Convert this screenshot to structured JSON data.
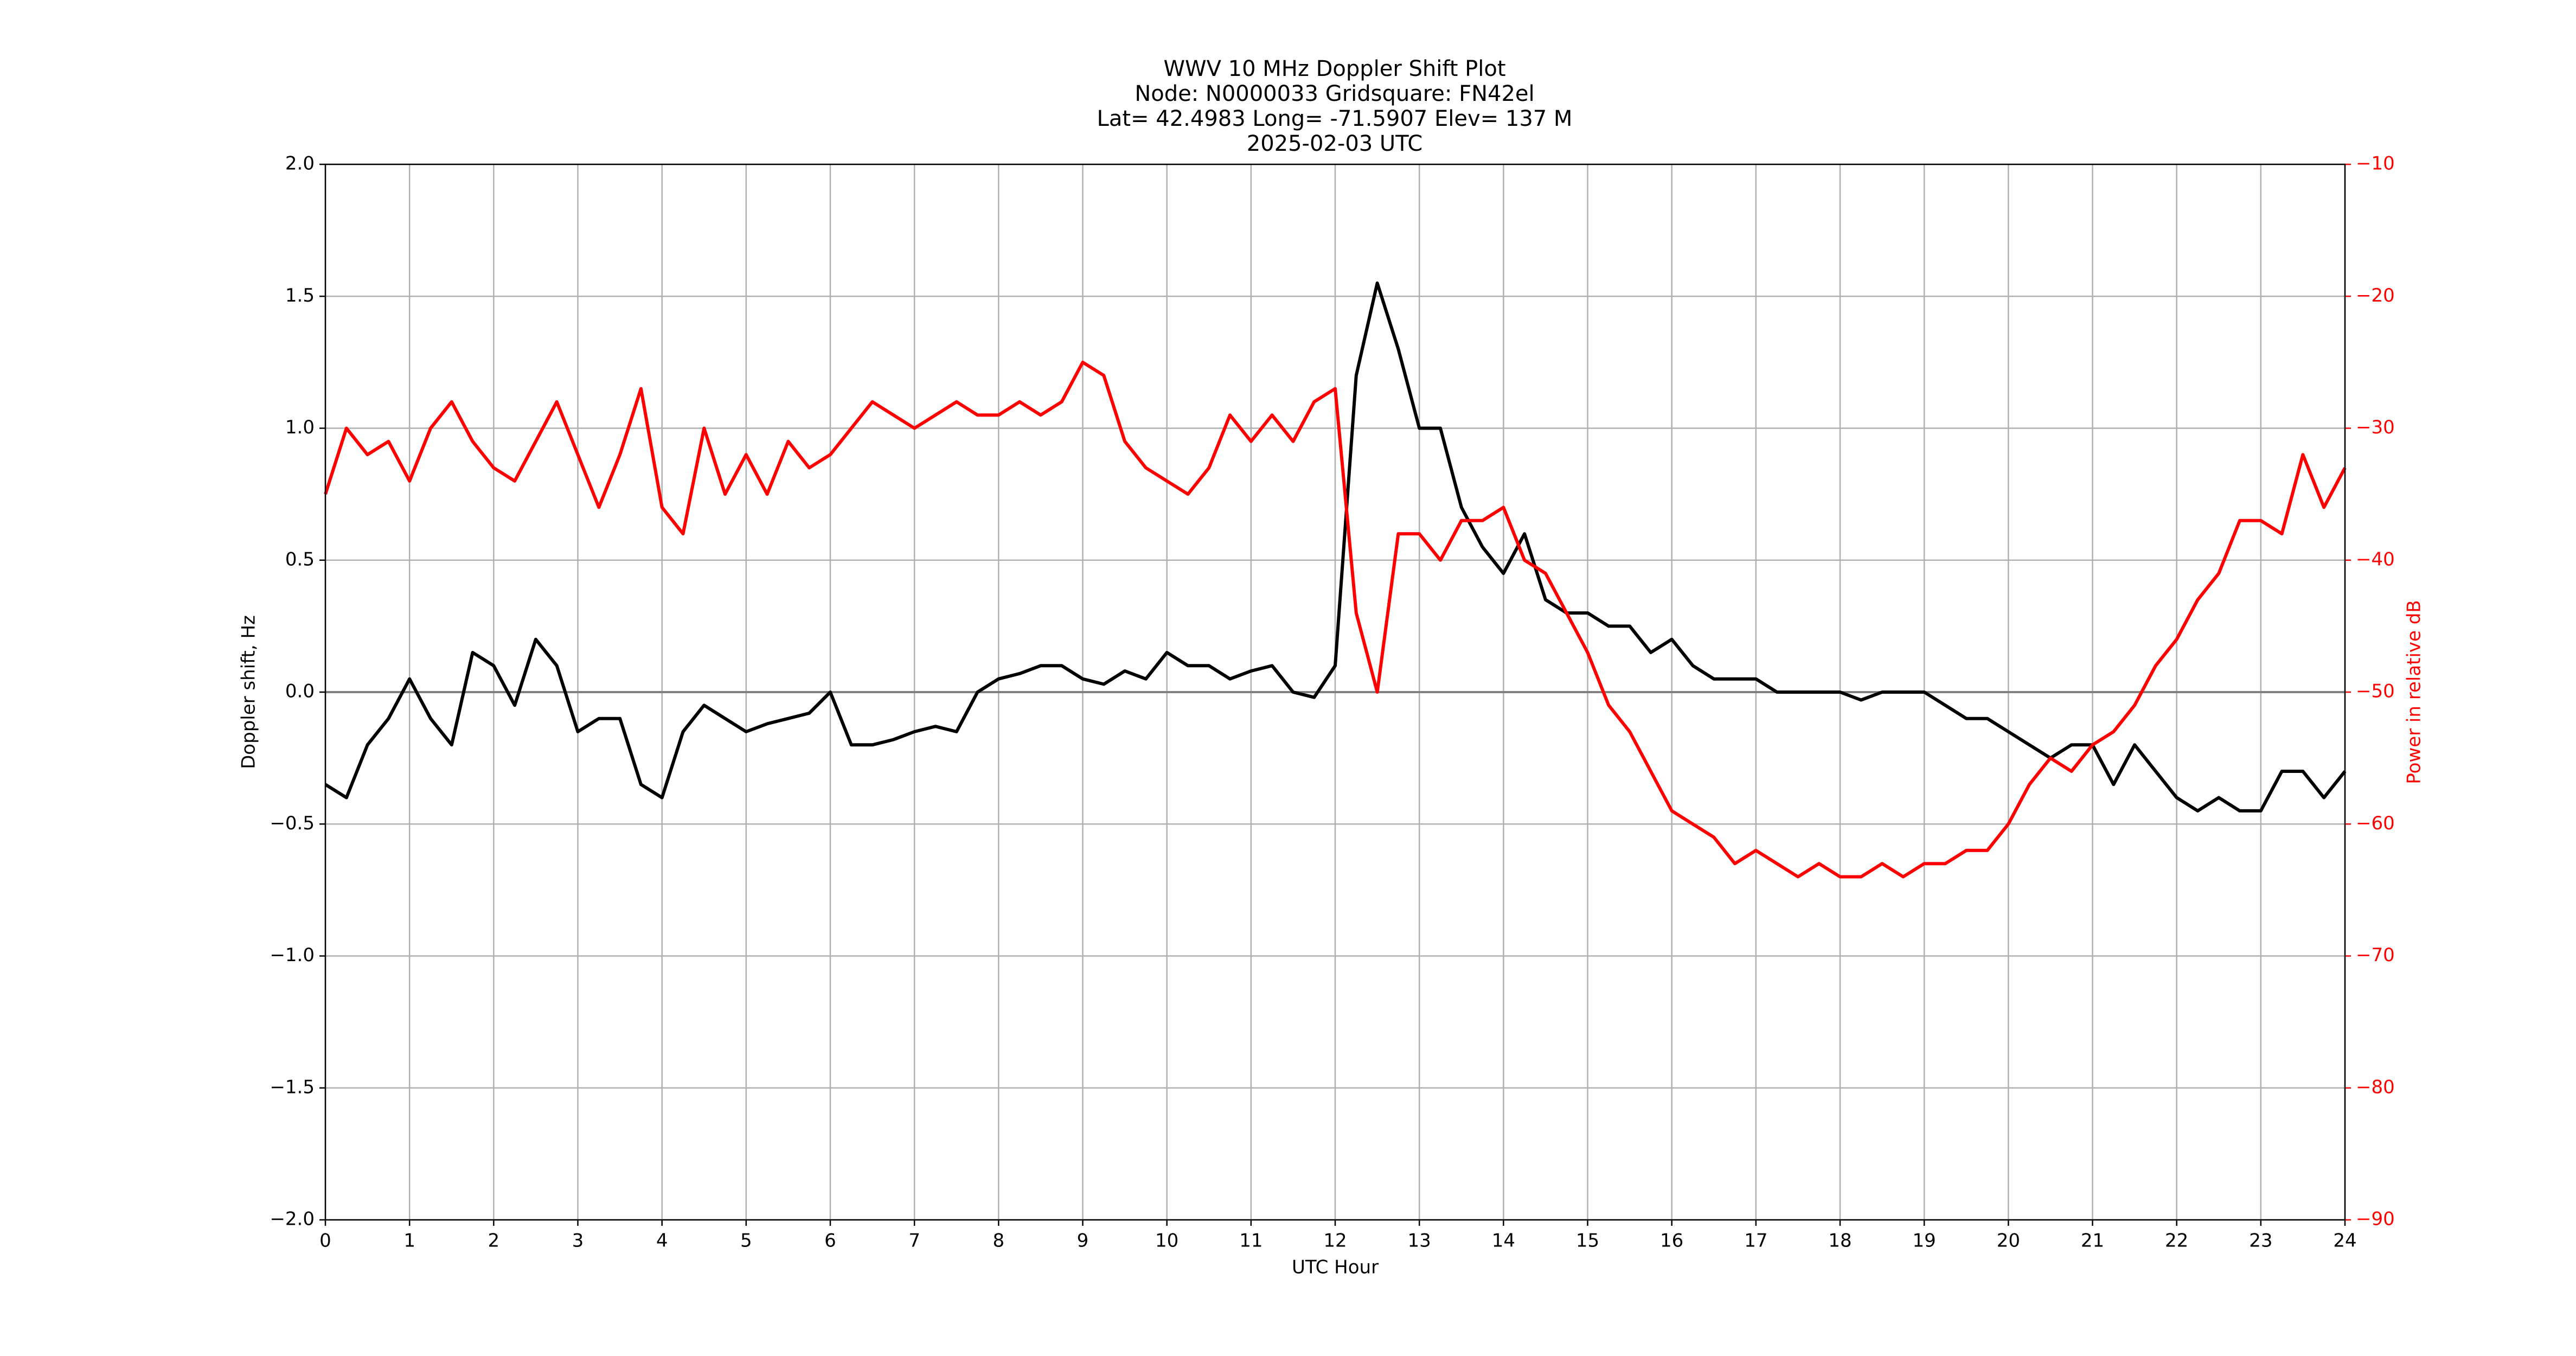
{
  "chart_data": {
    "type": "line",
    "title": [
      "WWV 10 MHz Doppler Shift Plot",
      "Node:  N0000033     Gridsquare:  FN42el",
      "Lat= 42.4983    Long= -71.5907    Elev= 137 M",
      "2025-02-03  UTC"
    ],
    "xlabel": "UTC Hour",
    "ylabel": "Doppler shift, Hz",
    "y2label": "Power in relative dB",
    "y2color": "#ff0000",
    "grid": true,
    "hline": 0,
    "xlim": [
      0,
      24
    ],
    "xticks": [
      0,
      1,
      2,
      3,
      4,
      5,
      6,
      7,
      8,
      9,
      10,
      11,
      12,
      13,
      14,
      15,
      16,
      17,
      18,
      19,
      20,
      21,
      22,
      23,
      24
    ],
    "ylim": [
      -2,
      2
    ],
    "yticks": [
      {
        "value": -2,
        "label": "−2.0"
      },
      {
        "value": -1.5,
        "label": "−1.5"
      },
      {
        "value": -1,
        "label": "−1.0"
      },
      {
        "value": -0.5,
        "label": "−0.5"
      },
      {
        "value": 0,
        "label": "0.0"
      },
      0.5,
      {
        "value": 1,
        "label": "1.0"
      },
      1.5,
      {
        "value": 2,
        "label": "2.0"
      }
    ],
    "y2lim": [
      -90,
      -10
    ],
    "y2ticks": [
      {
        "value": -90,
        "label": "−90"
      },
      {
        "value": -80,
        "label": "−80"
      },
      {
        "value": -70,
        "label": "−70"
      },
      {
        "value": -60,
        "label": "−60"
      },
      {
        "value": -50,
        "label": "−50"
      },
      {
        "value": -40,
        "label": "−40"
      },
      {
        "value": -30,
        "label": "−30"
      },
      {
        "value": -20,
        "label": "−20"
      },
      {
        "value": -10,
        "label": "−10"
      }
    ],
    "x": [
      0,
      0.25,
      0.5,
      0.75,
      1,
      1.25,
      1.5,
      1.75,
      2,
      2.25,
      2.5,
      2.75,
      3,
      3.25,
      3.5,
      3.75,
      4,
      4.25,
      4.5,
      4.75,
      5,
      5.25,
      5.5,
      5.75,
      6,
      6.25,
      6.5,
      6.75,
      7,
      7.25,
      7.5,
      7.75,
      8,
      8.25,
      8.5,
      8.75,
      9,
      9.25,
      9.5,
      9.75,
      10,
      10.25,
      10.5,
      10.75,
      11,
      11.25,
      11.5,
      11.75,
      12,
      12.25,
      12.5,
      12.75,
      13,
      13.25,
      13.5,
      13.75,
      14,
      14.25,
      14.5,
      14.75,
      15,
      15.25,
      15.5,
      15.75,
      16,
      16.25,
      16.5,
      16.75,
      17,
      17.25,
      17.5,
      17.75,
      18,
      18.25,
      18.5,
      18.75,
      19,
      19.25,
      19.5,
      19.75,
      20,
      20.25,
      20.5,
      20.75,
      21,
      21.25,
      21.5,
      21.75,
      22,
      22.25,
      22.5,
      22.75,
      23,
      23.25,
      23.5,
      23.75,
      24
    ],
    "series": [
      {
        "color": "#000000",
        "values": [
          -0.35,
          -0.4,
          -0.2,
          -0.1,
          0.05,
          -0.1,
          -0.2,
          0.15,
          0.1,
          -0.05,
          0.2,
          0.1,
          -0.15,
          -0.1,
          -0.1,
          -0.35,
          -0.4,
          -0.15,
          -0.05,
          -0.1,
          -0.15,
          -0.12,
          -0.1,
          -0.08,
          0.0,
          -0.2,
          -0.2,
          -0.18,
          -0.15,
          -0.13,
          -0.15,
          0.0,
          0.05,
          0.07,
          0.1,
          0.1,
          0.05,
          0.03,
          0.08,
          0.05,
          0.15,
          0.1,
          0.1,
          0.05,
          0.08,
          0.1,
          0.0,
          -0.02,
          0.1,
          1.2,
          1.55,
          1.3,
          1.0,
          1.0,
          0.7,
          0.55,
          0.45,
          0.6,
          0.35,
          0.3,
          0.3,
          0.25,
          0.25,
          0.15,
          0.2,
          0.1,
          0.05,
          0.05,
          0.05,
          0.0,
          0.0,
          0.0,
          0.0,
          -0.03,
          0.0,
          0.0,
          0.0,
          -0.05,
          -0.1,
          -0.1,
          -0.15,
          -0.2,
          -0.25,
          -0.2,
          -0.2,
          -0.35,
          -0.2,
          -0.3,
          -0.4,
          -0.45,
          -0.4,
          -0.45,
          -0.45,
          -0.3,
          -0.3,
          -0.4,
          -0.3
        ]
      },
      {
        "color": "#ff0000",
        "axis": "y2",
        "values": [
          -35,
          -30,
          -32,
          -31,
          -34,
          -30,
          -28,
          -31,
          -33,
          -34,
          -31,
          -28,
          -32,
          -36,
          -32,
          -27,
          -36,
          -38,
          -30,
          -35,
          -32,
          -35,
          -31,
          -33,
          -32,
          -30,
          -28,
          -29,
          -30,
          -29,
          -28,
          -29,
          -29,
          -28,
          -29,
          -28,
          -25,
          -26,
          -31,
          -33,
          -34,
          -35,
          -33,
          -29,
          -31,
          -29,
          -31,
          -28,
          -27,
          -44,
          -50,
          -38,
          -38,
          -40,
          -37,
          -37,
          -36,
          -40,
          -41,
          -44,
          -47,
          -51,
          -53,
          -56,
          -59,
          -60,
          -61,
          -63,
          -62,
          -63,
          -64,
          -63,
          -64,
          -64,
          -63,
          -64,
          -63,
          -63,
          -62,
          -62,
          -60,
          -57,
          -55,
          -56,
          -54,
          -53,
          -51,
          -48,
          -46,
          -43,
          -41,
          -37,
          -37,
          -38,
          -32,
          -36,
          -33
        ]
      }
    ]
  }
}
